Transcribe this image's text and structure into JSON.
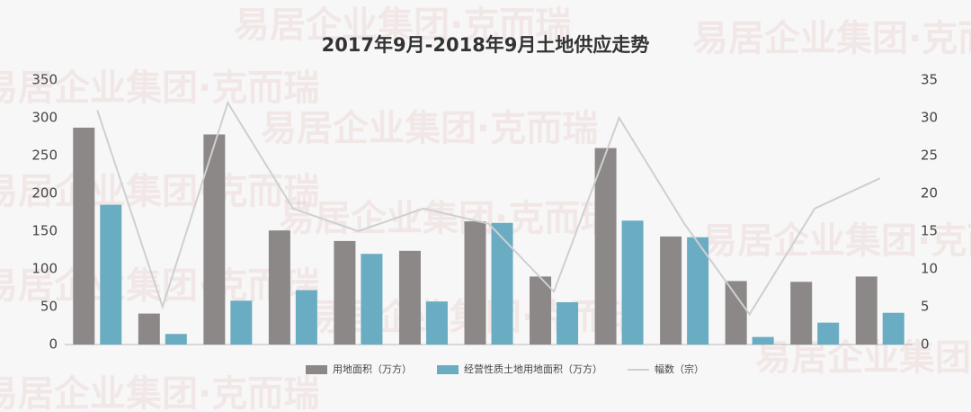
{
  "watermark": "易居企业集团·克而瑞",
  "chart_data": {
    "type": "bar-line",
    "title": "2017年9月-2018年9月土地供应走势",
    "categories": [
      null,
      null,
      null,
      null,
      null,
      null,
      null,
      null,
      null,
      null,
      null,
      null,
      null
    ],
    "series": [
      {
        "name": "用地面积（万方）",
        "color": "#8c8888",
        "type": "bar",
        "values": [
          287,
          41,
          278,
          151,
          137,
          124,
          163,
          90,
          260,
          143,
          84,
          83,
          90
        ]
      },
      {
        "name": "经营性质土地用地面积（万方）",
        "color": "#6aacc2",
        "type": "bar",
        "values": [
          185,
          14,
          58,
          72,
          120,
          57,
          161,
          56,
          164,
          142,
          10,
          29,
          42
        ]
      },
      {
        "name": "幅数（宗）",
        "color": "#cfcfcf",
        "type": "line",
        "axis": "y2",
        "values": [
          31,
          5,
          32,
          18,
          15,
          18,
          16,
          7,
          30,
          16,
          4,
          18,
          22
        ]
      }
    ],
    "ylim": [
      0,
      350
    ],
    "yticks": [
      0,
      50,
      100,
      150,
      200,
      250,
      300,
      350
    ],
    "y2lim": [
      0,
      35
    ],
    "y2ticks": [
      0,
      5,
      10,
      15,
      20,
      25,
      30,
      35
    ],
    "legend": "bottom"
  }
}
